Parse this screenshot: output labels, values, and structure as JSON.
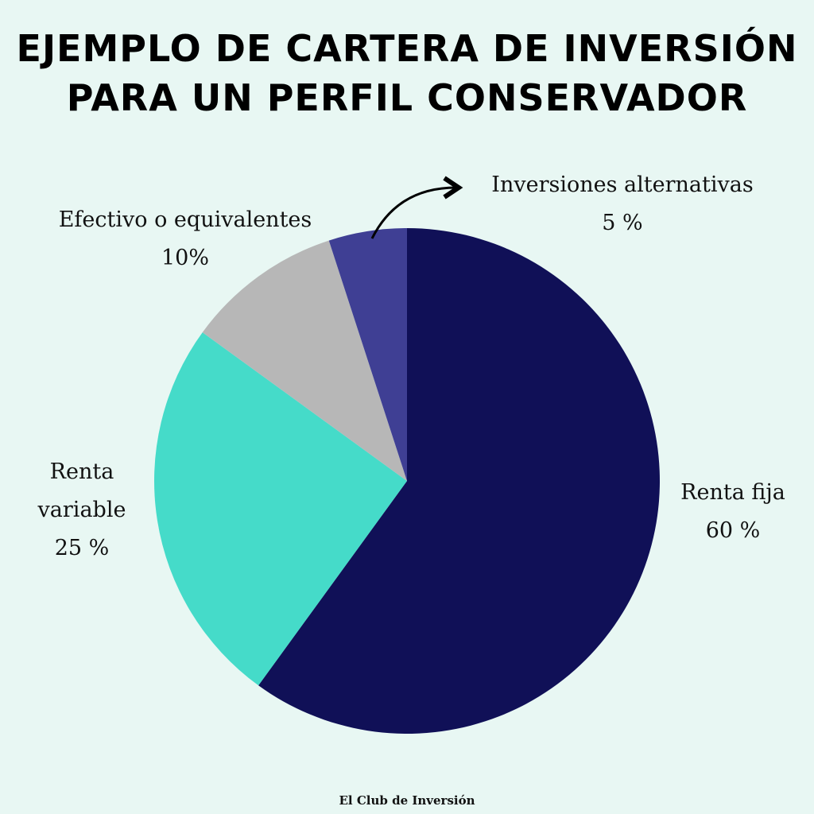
{
  "chart_data": {
    "type": "pie",
    "title": "EJEMPLO DE CARTERA DE INVERSIÓN PARA UN PERFIL CONSERVADOR",
    "categories": [
      "Renta fija",
      "Renta variable",
      "Efectivo o equivalentes",
      "Inversiones alternativas"
    ],
    "values": [
      60,
      25,
      10,
      5
    ],
    "value_labels": [
      "60 %",
      "25 %",
      "10%",
      "5 %"
    ],
    "colors": [
      "#101057",
      "#45dbc9",
      "#b7b7b7",
      "#3f3f94"
    ],
    "footer": "El Club de Inversión"
  }
}
